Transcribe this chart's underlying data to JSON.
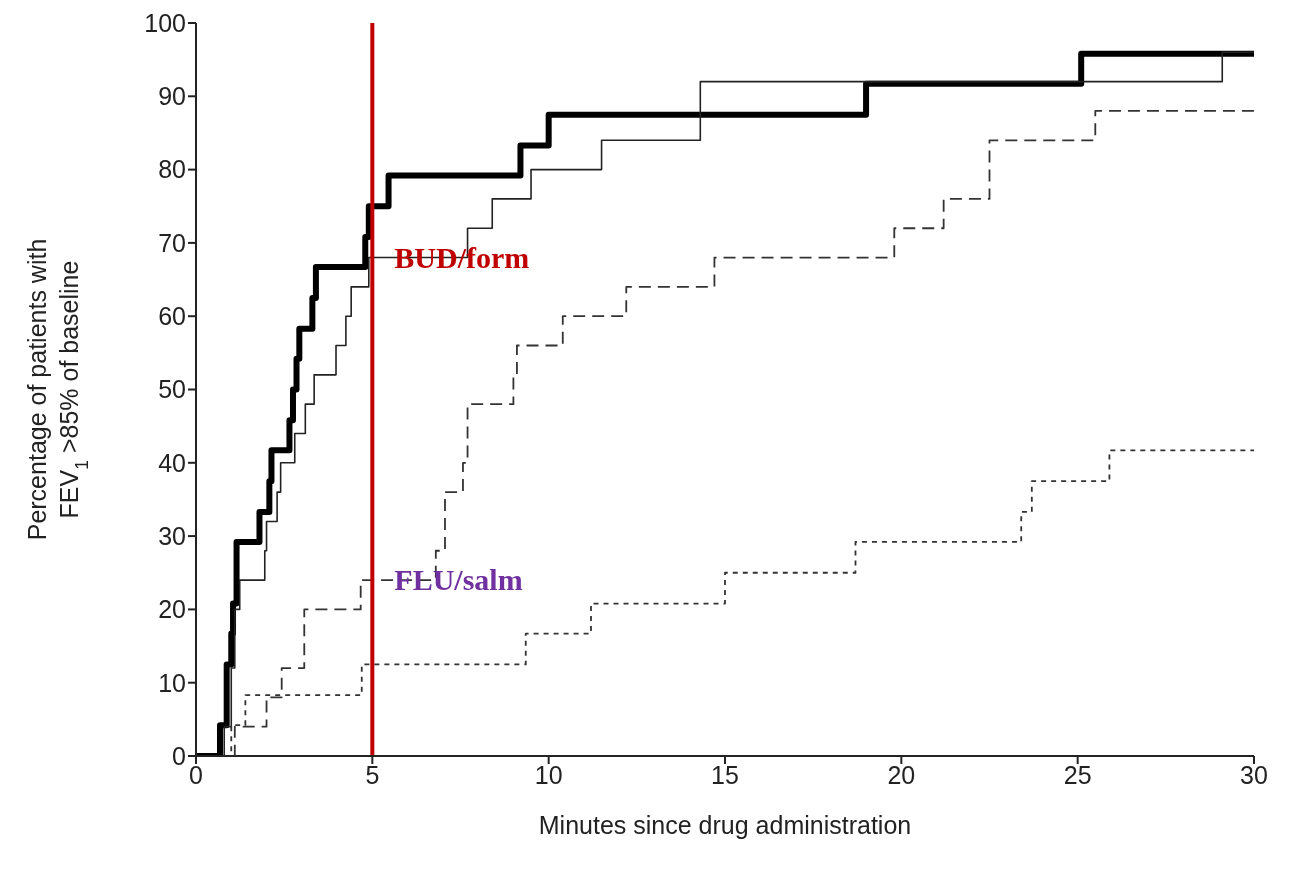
{
  "chart_data": {
    "type": "step",
    "xlabel": "Minutes since drug administration",
    "ylabel": "Percentage of patients with\nFEV$_{1}$ >85% of baseline",
    "xlim": [
      0,
      30
    ],
    "xticks": [
      0,
      5,
      10,
      15,
      20,
      25,
      30
    ],
    "ylim": [
      0,
      100
    ],
    "yticks": [
      0,
      10,
      20,
      30,
      40,
      50,
      60,
      70,
      80,
      90,
      100
    ],
    "marker": "none",
    "series": [
      {
        "color": "#000000",
        "line_style": "solid",
        "x": [
          0,
          0.68,
          0.87,
          1.0,
          1.05,
          1.15,
          1.8,
          2.08,
          2.14,
          2.65,
          2.75,
          2.85,
          2.93,
          3.3,
          3.4,
          4.8,
          4.9,
          5.46,
          9.2,
          10.0,
          19.0,
          25.1,
          30
        ],
        "values": [
          0,
          4.2,
          12.5,
          16.7,
          20.8,
          29.2,
          33.3,
          37.5,
          41.7,
          45.8,
          50,
          54.2,
          58.3,
          62.5,
          66.7,
          70.8,
          75,
          79.2,
          83.3,
          87.5,
          91.7,
          95.8,
          95.8
        ]
      },
      {
        "color": "#222222",
        "line_style": "solid",
        "x": [
          0,
          0.8,
          1.0,
          1.1,
          1.24,
          1.95,
          2.0,
          2.3,
          2.4,
          2.8,
          3.1,
          3.35,
          3.97,
          4.25,
          4.4,
          4.9,
          7.7,
          8.4,
          9.5,
          11.5,
          14.3,
          29.1,
          30
        ],
        "values": [
          0,
          4,
          12,
          20,
          24,
          28,
          32,
          36,
          40,
          44,
          48,
          52,
          56,
          60,
          64,
          68,
          72,
          76,
          80,
          84,
          92,
          96,
          96
        ]
      },
      {
        "color": "#333333",
        "line_style": "dashed",
        "x": [
          0,
          1.1,
          2.0,
          2.43,
          3.07,
          4.67,
          6.8,
          7.06,
          7.57,
          7.7,
          9.0,
          9.1,
          10.4,
          12.2,
          14.7,
          19.8,
          21.2,
          22.5,
          25.5,
          30
        ],
        "values": [
          0,
          4,
          8,
          12,
          20,
          24,
          28,
          36,
          40,
          48,
          52,
          56,
          60,
          64,
          68,
          72,
          76,
          84,
          88,
          88
        ]
      },
      {
        "color": "#333333",
        "line_style": "dotted",
        "x": [
          0,
          1.0,
          1.4,
          4.7,
          9.35,
          11.2,
          15.0,
          18.7,
          23.4,
          23.7,
          25.9,
          30
        ],
        "values": [
          0,
          4.2,
          8.3,
          12.5,
          16.7,
          20.8,
          25,
          29.2,
          33.3,
          37.5,
          41.7,
          41.7
        ]
      }
    ],
    "ref_lines": [
      {
        "axis": "x",
        "value": 5,
        "color": "#c00000",
        "line_style": "solid"
      }
    ],
    "annotations": [
      {
        "text": "BUD/form",
        "x": 5,
        "y": 68
      },
      {
        "text": "FLU/salm",
        "x": 5,
        "y": 24
      }
    ]
  }
}
